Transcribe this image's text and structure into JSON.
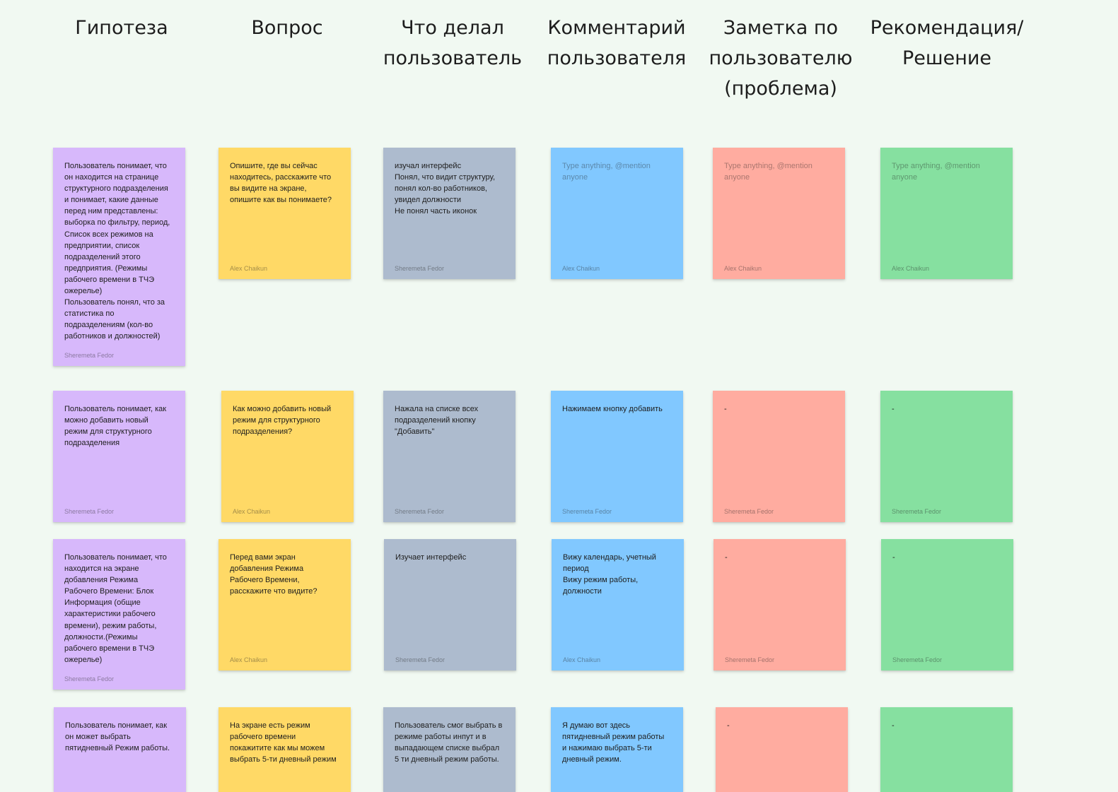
{
  "board": {
    "columns": [
      {
        "title": "Гипотеза"
      },
      {
        "title": "Вопрос"
      },
      {
        "title": "Что делал\nпользователь"
      },
      {
        "title": "Комментарий\nпользователя"
      },
      {
        "title": "Заметка по\nпользователю\n(проблема)"
      },
      {
        "title": "Рекомендация/\nРешение"
      }
    ],
    "colors": {
      "hypothesis": "#d7b8fb",
      "question": "#ffd966",
      "action": "#adbbce",
      "comment": "#81c8ff",
      "note": "#ffaca0",
      "recommendation": "#86e0a0",
      "background": "#f1f9f2"
    },
    "rows": [
      {
        "cells": [
          {
            "text": "Пользователь понимает, что\nон находится на странице\nструктурного подразделения\nи понимает, какие данные\nперед ним представлены:\nвыборка по фильтру, период,\nСписок всех режимов на\nпредприятии, список\nподразделений этого\nпредприятия. (Режимы\nрабочего времени в ТЧЭ\nожерелье)\nПользователь понял, что за\nстатистика по\nподразделениям (кол-во\nработников и должностей)",
            "author": "Sheremeta Fedor"
          },
          {
            "text": "Опишите, где вы сейчас\nнаходитесь, расскажите что\nвы видите на экране,\nопишите как вы понимаете?",
            "author": "Alex Chaikun"
          },
          {
            "text": "изучал интерфейс\nПонял, что видит структуру,\nпонял кол-во работников,\nувидел должности\nНе понял часть иконок",
            "author": "Sheremeta Fedor"
          },
          {
            "placeholder": "Type anything, @mention\nanyone",
            "author": "Alex Chaikun"
          },
          {
            "placeholder": "Type anything, @mention\nanyone",
            "author": "Alex Chaikun"
          },
          {
            "placeholder": "Type anything, @mention\nanyone",
            "author": "Alex Chaikun"
          }
        ]
      },
      {
        "cells": [
          {
            "text": "Пользователь понимает, как\nможно добавить новый\nрежим для структурного\nподразделения",
            "author": "Sheremeta Fedor"
          },
          {
            "text": "Как можно добавить новый\nрежим для структурного\nподразделения?",
            "author": "Alex Chaikun"
          },
          {
            "text": "Нажала на списке всех\nподразделений кнопку\n\"Добавить\"",
            "author": "Sheremeta Fedor"
          },
          {
            "text": "Нажимаем кнопку добавить",
            "author": "Sheremeta Fedor"
          },
          {
            "text": "-",
            "author": "Sheremeta Fedor"
          },
          {
            "text": "-",
            "author": "Sheremeta Fedor"
          }
        ]
      },
      {
        "cells": [
          {
            "text": "Пользователь понимает, что\nнаходится на экране\nдобавления Режима\nРабочего Времени: Блок\nИнформация (общие\nхарактеристики рабочего\nвремени), режим работы,\nдолжности.(Режимы\nрабочего времени в ТЧЭ\nожерелье)",
            "author": "Sheremeta Fedor"
          },
          {
            "text": "Перед вами экран\nдобавления Режима\nРабочего Времени,\nрасскажите что видите?",
            "author": "Alex Chaikun"
          },
          {
            "text": "Изучает интерфейс",
            "author": "Sheremeta Fedor"
          },
          {
            "text": "Вижу календарь, учетный\nпериод\nВижу режим работы,\nдолжности",
            "author": "Alex Chaikun"
          },
          {
            "text": "-",
            "author": "Sheremeta Fedor"
          },
          {
            "text": "-",
            "author": "Sheremeta Fedor"
          }
        ]
      },
      {
        "cells": [
          {
            "text": "Пользователь понимает, как\nон может выбрать\nпятидневный Режим работы.",
            "author": ""
          },
          {
            "text": "На экране есть режим\nрабочего времени\nпокажитите как мы можем\nвыбрать 5-ти дневный режим",
            "author": ""
          },
          {
            "text": "Пользователь смог выбрать в\nрежиме работы инпут и в\nвыпадающем списке выбрал\n5 ти дневный режим работы.",
            "author": ""
          },
          {
            "text": "Я думаю вот здесь\nпятидневный режим работы\nи нажимаю выбрать 5-ти\nдневный режим.",
            "author": ""
          },
          {
            "text": "-",
            "author": ""
          },
          {
            "text": "-",
            "author": ""
          }
        ]
      }
    ]
  }
}
